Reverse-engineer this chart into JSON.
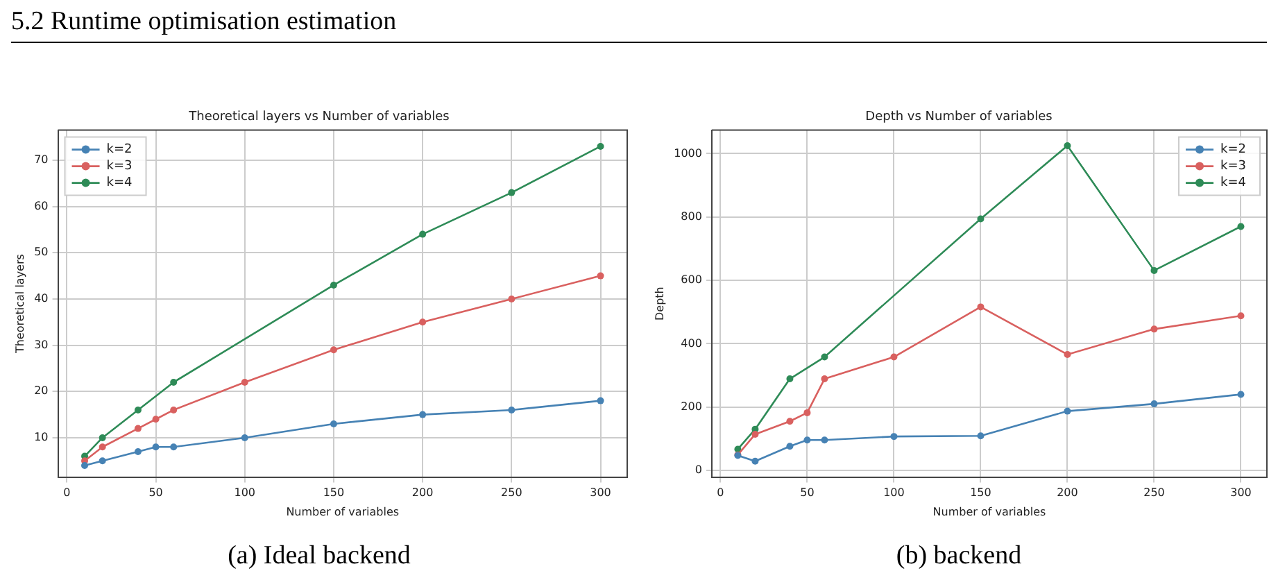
{
  "chart_data": [
    {
      "type": "line",
      "title": "Theoretical layers vs Number of variables",
      "xlabel": "Number of variables",
      "ylabel": "Theoretical layers",
      "x": [
        10,
        20,
        40,
        50,
        60,
        100,
        150,
        200,
        250,
        300
      ],
      "series": [
        {
          "name": "k=2",
          "color": "#4682b4",
          "values": [
            4,
            5,
            7,
            8,
            8,
            10,
            13,
            15,
            16,
            18
          ]
        },
        {
          "name": "k=3",
          "color": "#d9605f",
          "values": [
            5,
            8,
            12,
            14,
            16,
            22,
            29,
            35,
            40,
            45
          ]
        },
        {
          "name": "k=4",
          "color": "#2e8b57",
          "x": [
            10,
            20,
            40,
            60,
            150,
            200,
            250,
            300
          ],
          "values": [
            6,
            10,
            16,
            22,
            43,
            54,
            63,
            73
          ]
        }
      ],
      "xlim": [
        -5,
        315
      ],
      "xticks": [
        0,
        50,
        100,
        150,
        200,
        250,
        300
      ],
      "ylim": [
        1.5,
        76.5
      ],
      "yticks": [
        10,
        20,
        30,
        40,
        50,
        60,
        70
      ],
      "grid": true,
      "legend": "top left",
      "marker": "circle",
      "line_style": "solid",
      "annotations": [
        "5.2 Runtime optimisation estimation",
        "(a) Ideal backend"
      ]
    },
    {
      "type": "line",
      "title": "Depth vs Number of variables",
      "xlabel": "Number of variables",
      "ylabel": "Depth",
      "x": [
        10,
        20,
        40,
        50,
        60,
        100,
        150,
        200,
        250,
        300
      ],
      "series": [
        {
          "name": "k=2",
          "color": "#4682b4",
          "values": [
            47,
            29,
            76,
            96,
            96,
            107,
            109,
            187,
            210,
            240
          ]
        },
        {
          "name": "k=3",
          "color": "#d9605f",
          "values": [
            49,
            114,
            155,
            182,
            289,
            358,
            516,
            366,
            446,
            488
          ]
        },
        {
          "name": "k=4",
          "color": "#2e8b57",
          "x": [
            10,
            20,
            40,
            60,
            150,
            200,
            250,
            300
          ],
          "values": [
            67,
            130,
            289,
            358,
            794,
            1025,
            631,
            770
          ]
        }
      ],
      "xlim": [
        -5,
        315
      ],
      "xticks": [
        0,
        50,
        100,
        150,
        200,
        250,
        300
      ],
      "ylim": [
        -21,
        1074
      ],
      "yticks": [
        0,
        200,
        400,
        600,
        800,
        1000
      ],
      "grid": true,
      "legend": "top right",
      "marker": "circle",
      "line_style": "solid",
      "annotations": [
        "(b) backend"
      ]
    }
  ]
}
